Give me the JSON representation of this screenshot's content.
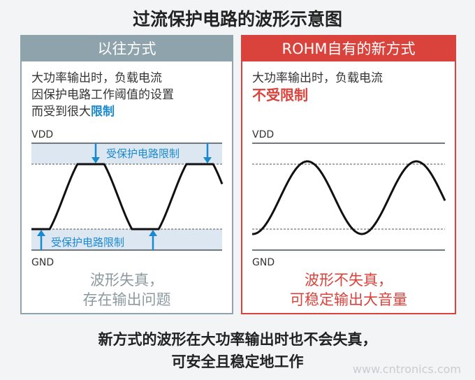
{
  "title": "过流保护电路的波形示意图",
  "left": {
    "header": "以往方式",
    "desc_lines": [
      "大功率输出时，负载电流",
      "因保护电路工作阈值的设置"
    ],
    "desc_line3_prefix": "而受到很大",
    "desc_line3_highlight": "限制",
    "vdd": "VDD",
    "gnd": "GND",
    "limit_top": "受保护电路限制",
    "limit_bottom": "受保护电路限制",
    "conclusion": [
      "波形失真，",
      "存在输出问题"
    ]
  },
  "right": {
    "header": "ROHM自有的新方式",
    "desc_line": "大功率输出时，负载电流",
    "highlight": "不受限制",
    "vdd": "VDD",
    "gnd": "GND",
    "conclusion": [
      "波形不失真，",
      "可稳定输出大音量"
    ]
  },
  "bottom": [
    "新方式的波形在大功率输出时也不会失真，",
    "可安全且稳定地工作"
  ],
  "watermark": "www.cntronics.com",
  "colors": {
    "old": "#8fa3ac",
    "new": "#d9433c",
    "limit": "#1a8ad0",
    "band": "#dde7f2"
  }
}
